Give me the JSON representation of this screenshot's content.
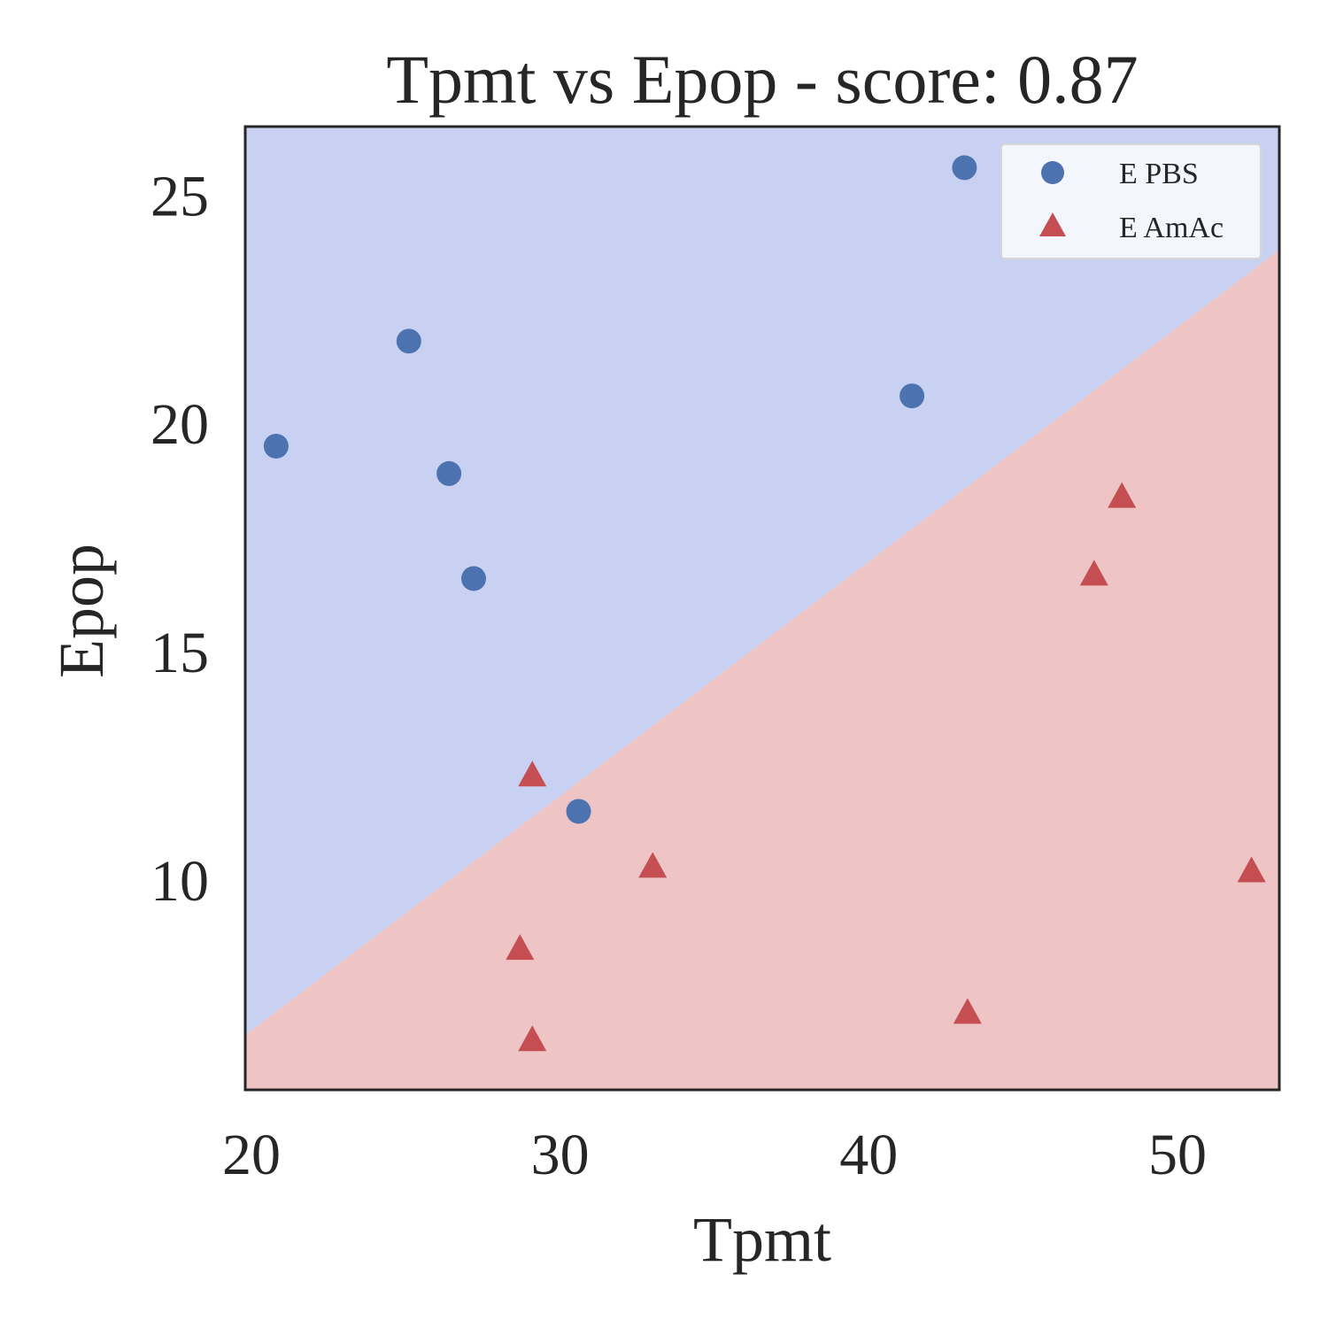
{
  "chart_data": {
    "type": "scatter",
    "title": "Tpmt vs Epop - score: 0.87",
    "xlabel": "Tpmt",
    "ylabel": "Epop",
    "xlim": [
      19.8,
      53.3
    ],
    "ylim": [
      5.4,
      26.5
    ],
    "xticks": [
      20,
      30,
      40,
      50
    ],
    "yticks": [
      10,
      15,
      20,
      25
    ],
    "legend_position": "top-right",
    "decision_boundary": {
      "x": [
        19.8,
        53.3
      ],
      "y": [
        6.6,
        23.8
      ]
    },
    "regions": [
      {
        "name": "E PBS",
        "side": "above",
        "color": "#c9d1f2"
      },
      {
        "name": "E AmAc",
        "side": "below",
        "color": "#efc4c4"
      }
    ],
    "series": [
      {
        "name": "E PBS",
        "marker": "circle",
        "color": "#4c72b0",
        "x": [
          20.8,
          25.1,
          26.4,
          27.2,
          30.6,
          41.4,
          43.1
        ],
        "y": [
          19.5,
          21.8,
          18.9,
          16.6,
          11.5,
          20.6,
          25.6
        ]
      },
      {
        "name": "E AmAc",
        "marker": "triangle",
        "color": "#c44e52",
        "x": [
          29.1,
          28.7,
          29.1,
          33.0,
          43.2,
          47.3,
          48.2,
          52.4
        ],
        "y": [
          12.3,
          8.5,
          6.5,
          10.3,
          7.1,
          16.7,
          18.4,
          10.2
        ]
      }
    ]
  }
}
